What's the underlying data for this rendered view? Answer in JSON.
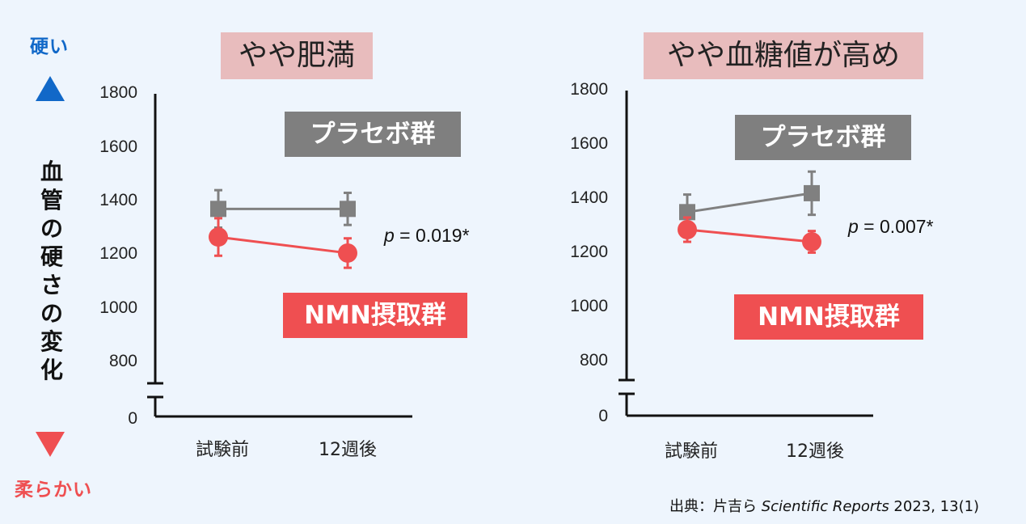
{
  "side": {
    "hard_label": "硬い",
    "soft_label": "柔らかい",
    "up_color": "#1168c8",
    "down_color": "#ef4f51"
  },
  "y_axis_title": "血管の硬さの変化",
  "colors": {
    "placebo": "#808080",
    "nmn": "#ef4f51",
    "title_bg": "#e8bcbd"
  },
  "legend": {
    "placebo": "プラセボ群",
    "nmn": "NMN摂取群"
  },
  "source": {
    "prefix": "出典：片吉ら ",
    "journal": "Scientific Reports",
    "suffix": " 2023, 13(1)"
  },
  "chart_data": [
    {
      "type": "line",
      "title": "やや肥満",
      "categories": [
        "試験前",
        "12週後"
      ],
      "yticks": [
        "1800",
        "1600",
        "1400",
        "1200",
        "1000",
        "800",
        "0"
      ],
      "ylim": [
        800,
        1800
      ],
      "axis_break": true,
      "p_value": {
        "italic": "p",
        "rest": " = 0.019*"
      },
      "series": [
        {
          "name": "プラセボ群",
          "marker": "square",
          "values": [
            1370,
            1370
          ],
          "err": [
            70,
            60
          ]
        },
        {
          "name": "NMN摂取群",
          "marker": "circle",
          "values": [
            1265,
            1205
          ],
          "err": [
            70,
            55
          ]
        }
      ]
    },
    {
      "type": "line",
      "title": "やや血糖値が高め",
      "categories": [
        "試験前",
        "12週後"
      ],
      "yticks": [
        "1800",
        "1600",
        "1400",
        "1200",
        "1000",
        "800",
        "0"
      ],
      "ylim": [
        800,
        1800
      ],
      "axis_break": true,
      "p_value": {
        "italic": "p",
        "rest": " = 0.007*"
      },
      "series": [
        {
          "name": "プラセボ群",
          "marker": "square",
          "values": [
            1350,
            1420
          ],
          "err": [
            65,
            80
          ]
        },
        {
          "name": "NMN摂取群",
          "marker": "circle",
          "values": [
            1285,
            1240
          ],
          "err": [
            45,
            40
          ]
        }
      ]
    }
  ]
}
